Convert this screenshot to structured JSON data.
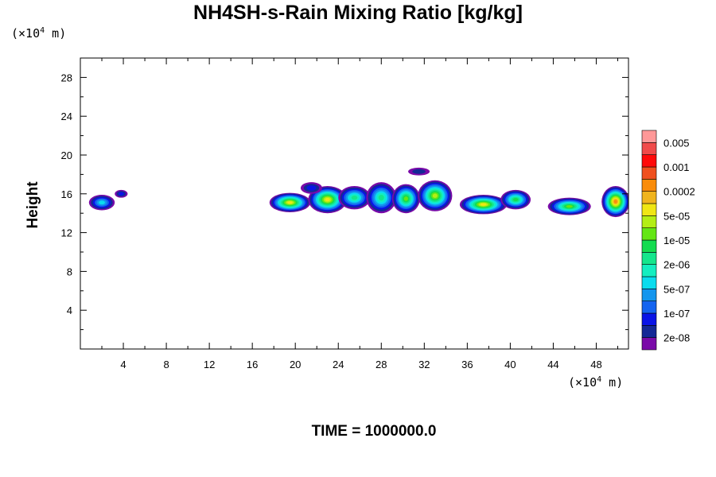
{
  "chart_data": {
    "type": "heatmap",
    "title": "NH4SH-s-Rain Mixing Ratio [kg/kg]",
    "ylabel": "Height",
    "xlabel": "",
    "x_unit_prefix": "(×10",
    "x_unit_exp": "4",
    "x_unit_suffix": " m)",
    "y_unit_prefix": "(×10",
    "y_unit_exp": "4",
    "y_unit_suffix": " m)",
    "xlim": [
      0,
      51
    ],
    "ylim": [
      0,
      30
    ],
    "x_ticks": [
      4,
      8,
      12,
      16,
      20,
      24,
      28,
      32,
      36,
      40,
      44,
      48
    ],
    "y_ticks": [
      4,
      8,
      12,
      16,
      20,
      24,
      28
    ],
    "colorbar": {
      "labels": [
        "0.005",
        "0.001",
        "0.0002",
        "5e-05",
        "1e-05",
        "2e-06",
        "5e-07",
        "1e-07",
        "2e-08"
      ],
      "colors": [
        "#7a0aa8",
        "#142896",
        "#0a14e6",
        "#1464f0",
        "#1496ee",
        "#0adcee",
        "#14eec0",
        "#14e68c",
        "#14dc50",
        "#64e614",
        "#b4ee14",
        "#f0e614",
        "#f0b41e",
        "#fa8c0a",
        "#f0501e",
        "#ff0a0a",
        "#f04a4a",
        "#ff9898"
      ]
    },
    "blobs": [
      {
        "x": 2.0,
        "y": 15.1,
        "rx": 1.2,
        "ry": 0.8,
        "peak": 5
      },
      {
        "x": 3.8,
        "y": 16.0,
        "rx": 0.6,
        "ry": 0.4,
        "peak": 2
      },
      {
        "x": 19.5,
        "y": 15.1,
        "rx": 1.9,
        "ry": 1.0,
        "peak": 11
      },
      {
        "x": 23.0,
        "y": 15.4,
        "rx": 1.8,
        "ry": 1.4,
        "peak": 11
      },
      {
        "x": 25.5,
        "y": 15.6,
        "rx": 1.5,
        "ry": 1.2,
        "peak": 7
      },
      {
        "x": 28.0,
        "y": 15.6,
        "rx": 1.4,
        "ry": 1.6,
        "peak": 7
      },
      {
        "x": 30.3,
        "y": 15.5,
        "rx": 1.3,
        "ry": 1.5,
        "peak": 9
      },
      {
        "x": 33.0,
        "y": 15.8,
        "rx": 1.6,
        "ry": 1.6,
        "peak": 10
      },
      {
        "x": 37.5,
        "y": 14.9,
        "rx": 2.2,
        "ry": 1.0,
        "peak": 11
      },
      {
        "x": 40.5,
        "y": 15.4,
        "rx": 1.4,
        "ry": 1.0,
        "peak": 8
      },
      {
        "x": 45.5,
        "y": 14.7,
        "rx": 2.0,
        "ry": 0.9,
        "peak": 9
      },
      {
        "x": 49.8,
        "y": 15.2,
        "rx": 1.3,
        "ry": 1.6,
        "peak": 13
      },
      {
        "x": 31.5,
        "y": 18.3,
        "rx": 1.0,
        "ry": 0.4,
        "peak": 1
      },
      {
        "x": 21.5,
        "y": 16.6,
        "rx": 1.0,
        "ry": 0.6,
        "peak": 2
      }
    ]
  },
  "footer": {
    "time_label": "TIME = 1000000.0"
  }
}
